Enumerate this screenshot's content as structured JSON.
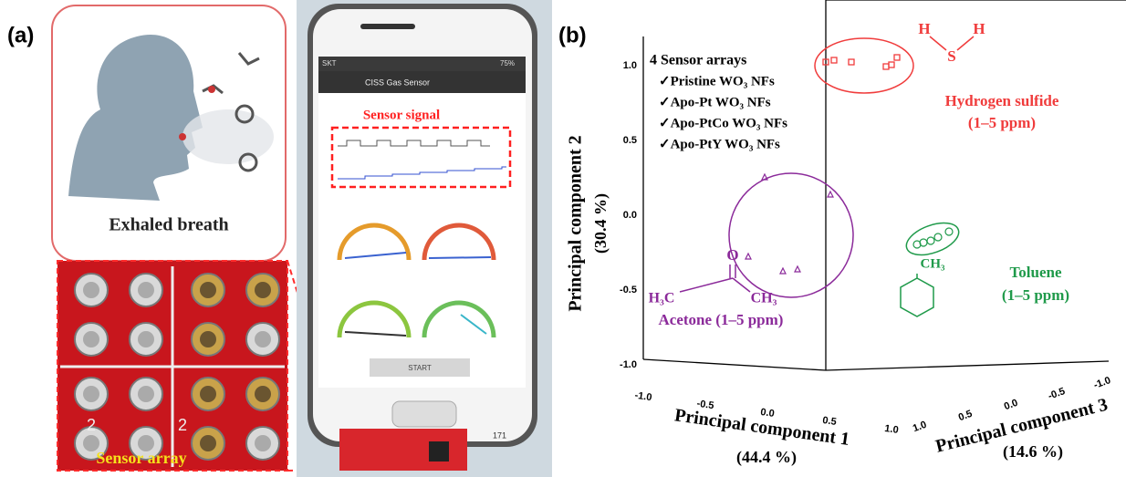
{
  "panel_a": {
    "label": "(a)",
    "breath_caption": "Exhaled breath",
    "array_caption": "Sensor array",
    "array_marks": [
      "2",
      "2"
    ],
    "phone": {
      "status": "SKT",
      "battery": "75%",
      "app_title": "CISS Gas Sensor",
      "signal_label": "Sensor signal",
      "button": "START",
      "board_text": "171"
    }
  },
  "panel_b": {
    "label": "(b)",
    "legend": {
      "title": "4 Sensor arrays",
      "items": [
        "✓Pristine WO₃ NFs",
        "✓Apo-Pt WO₃ NFs",
        "✓Apo-PtCo WO₃ NFs",
        "✓Apo-PtY WO₃ NFs"
      ]
    },
    "axes": {
      "pc1": {
        "title": "Principal component 1",
        "variance": "(44.4 %)",
        "ticks": [
          "-1.0",
          "-0.5",
          "0.0",
          "0.5",
          "1.0"
        ]
      },
      "pc2": {
        "title": "Principal component 2",
        "variance": "(30.4 %)",
        "ticks": [
          "1.0",
          "0.5",
          "0.0",
          "-0.5",
          "-1.0"
        ]
      },
      "pc3": {
        "title": "Principal component 3",
        "variance": "(14.6 %)",
        "ticks": [
          "1.0",
          "0.5",
          "0.0",
          "-0.5",
          "-1.0"
        ]
      }
    },
    "clusters": {
      "h2s": {
        "name": "Hydrogen sulfide",
        "range": "(1–5 ppm)",
        "atoms": [
          "H",
          "S",
          "H"
        ]
      },
      "acetone": {
        "name": "Acetone (1–5 ppm)",
        "atoms": [
          "O",
          "H₃C",
          "CH₃"
        ]
      },
      "toluene": {
        "name": "Toluene",
        "range": "(1–5 ppm)",
        "atoms": [
          "CH₃"
        ]
      }
    }
  }
}
